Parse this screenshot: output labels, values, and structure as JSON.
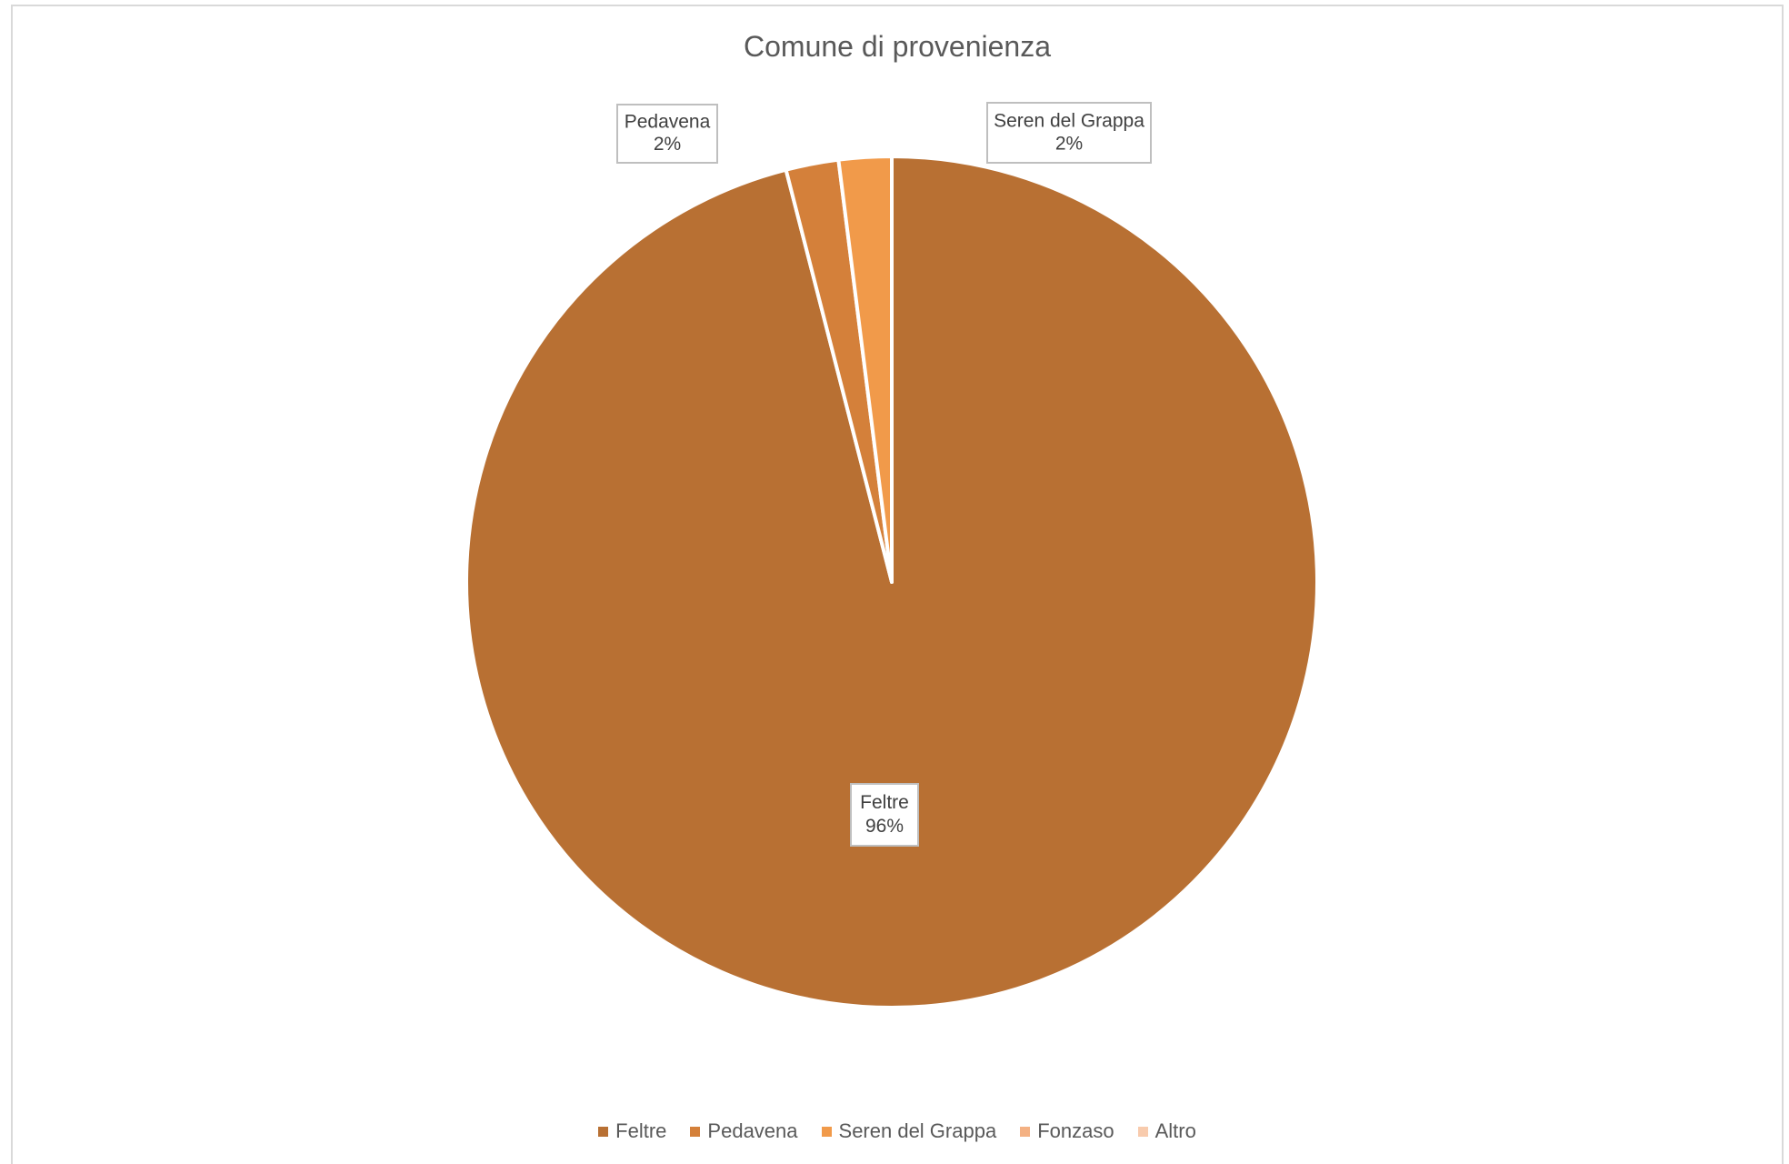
{
  "chart_data": {
    "type": "pie",
    "title": "Comune di provenienza",
    "start_angle_deg": 0,
    "direction": "clockwise",
    "slices": [
      {
        "name": "Feltre",
        "value": 96,
        "label_pct": "96%",
        "color": "#B87033"
      },
      {
        "name": "Pedavena",
        "value": 2,
        "label_pct": "2%",
        "color": "#D4803A"
      },
      {
        "name": "Seren del Grappa",
        "value": 2,
        "label_pct": "2%",
        "color": "#F19A4A"
      },
      {
        "name": "Fonzaso",
        "value": 0,
        "label_pct": "",
        "color": "#F4B183"
      },
      {
        "name": "Altro",
        "value": 0,
        "label_pct": "",
        "color": "#F8CBAD"
      }
    ],
    "legend": [
      "Feltre",
      "Pedavena",
      "Seren del Grappa",
      "Fonzaso",
      "Altro"
    ],
    "legend_position": "bottom",
    "slice_border_color": "#ffffff"
  }
}
